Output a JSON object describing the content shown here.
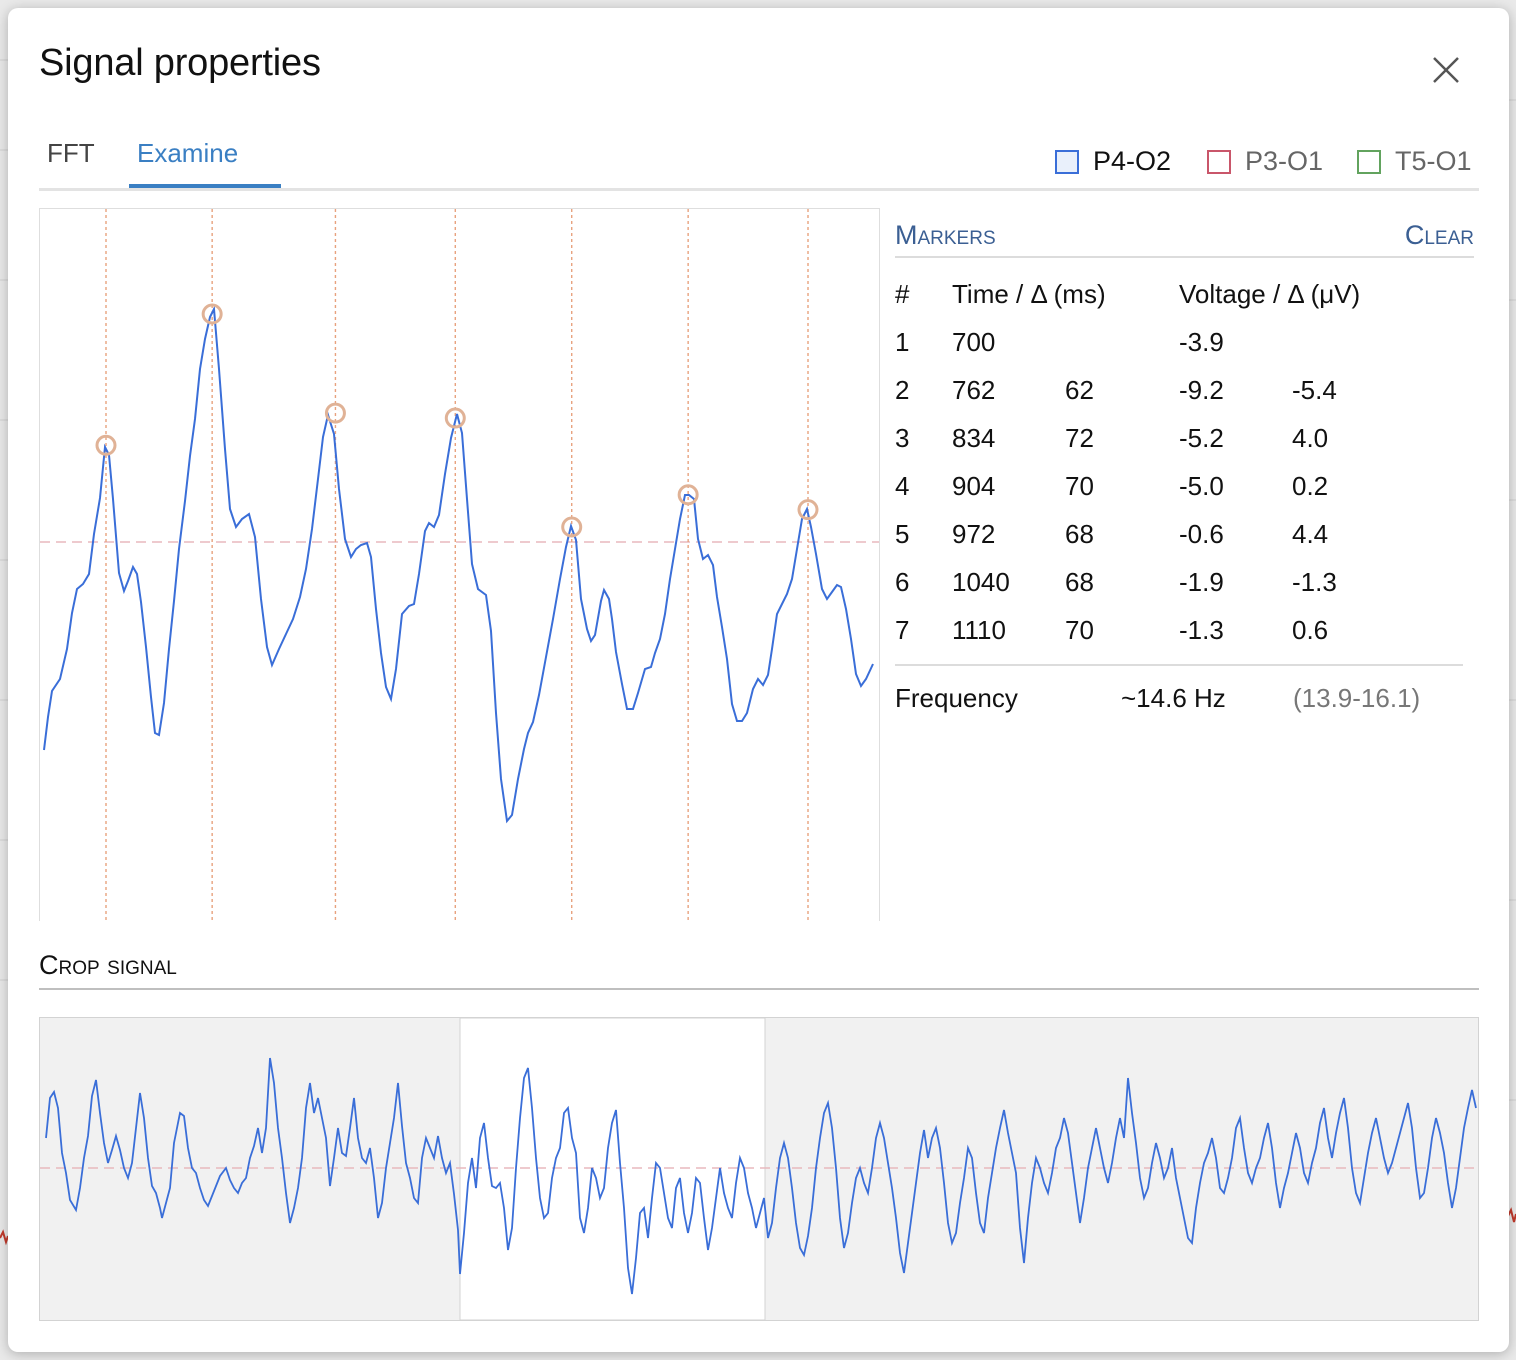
{
  "dialog": {
    "title": "Signal properties"
  },
  "tabs": [
    {
      "label": "FFT",
      "active": false
    },
    {
      "label": "Examine",
      "active": true
    }
  ],
  "legend": [
    {
      "label": "P4-O2",
      "color": "#3a6ed8",
      "selected": true
    },
    {
      "label": "P3-O1",
      "color": "#c9566a",
      "selected": false
    },
    {
      "label": "T5-O1",
      "color": "#62a35e",
      "selected": false
    }
  ],
  "markers": {
    "title": "Markers",
    "clear_label": "Clear",
    "headers": {
      "index": "#",
      "time": "Time / Δ (ms)",
      "voltage": "Voltage / Δ (μV)"
    },
    "rows": [
      {
        "n": "1",
        "time": "700",
        "dt": "",
        "voltage": "-3.9",
        "dv": ""
      },
      {
        "n": "2",
        "time": "762",
        "dt": "62",
        "voltage": "-9.2",
        "dv": "-5.4"
      },
      {
        "n": "3",
        "time": "834",
        "dt": "72",
        "voltage": "-5.2",
        "dv": "4.0"
      },
      {
        "n": "4",
        "time": "904",
        "dt": "70",
        "voltage": "-5.0",
        "dv": "0.2"
      },
      {
        "n": "5",
        "time": "972",
        "dt": "68",
        "voltage": "-0.6",
        "dv": "4.4"
      },
      {
        "n": "6",
        "time": "1040",
        "dt": "68",
        "voltage": "-1.9",
        "dv": "-1.3"
      },
      {
        "n": "7",
        "time": "1110",
        "dt": "70",
        "voltage": "-1.3",
        "dv": "0.6"
      }
    ]
  },
  "frequency": {
    "label": "Frequency",
    "value": "~14.6 Hz",
    "range": "(13.9-16.1)"
  },
  "crop": {
    "title": "Crop signal"
  },
  "colors": {
    "signal": "#3a6ed8",
    "marker_line": "#e8a27e",
    "marker_circle": "#e0b296",
    "baseline": "#e8b9be",
    "accent": "#3a7fc3",
    "section_title": "#3b5f93"
  },
  "chart_data": {
    "type": "line",
    "series": [
      {
        "name": "P4-O2",
        "markers": [
          {
            "time": 700,
            "voltage": -3.9
          },
          {
            "time": 762,
            "voltage": -9.2
          },
          {
            "time": 834,
            "voltage": -5.2
          },
          {
            "time": 904,
            "voltage": -5.0
          },
          {
            "time": 972,
            "voltage": -0.6
          },
          {
            "time": 1040,
            "voltage": -1.9
          },
          {
            "time": 1110,
            "voltage": -1.3
          }
        ]
      }
    ],
    "grid": false
  }
}
